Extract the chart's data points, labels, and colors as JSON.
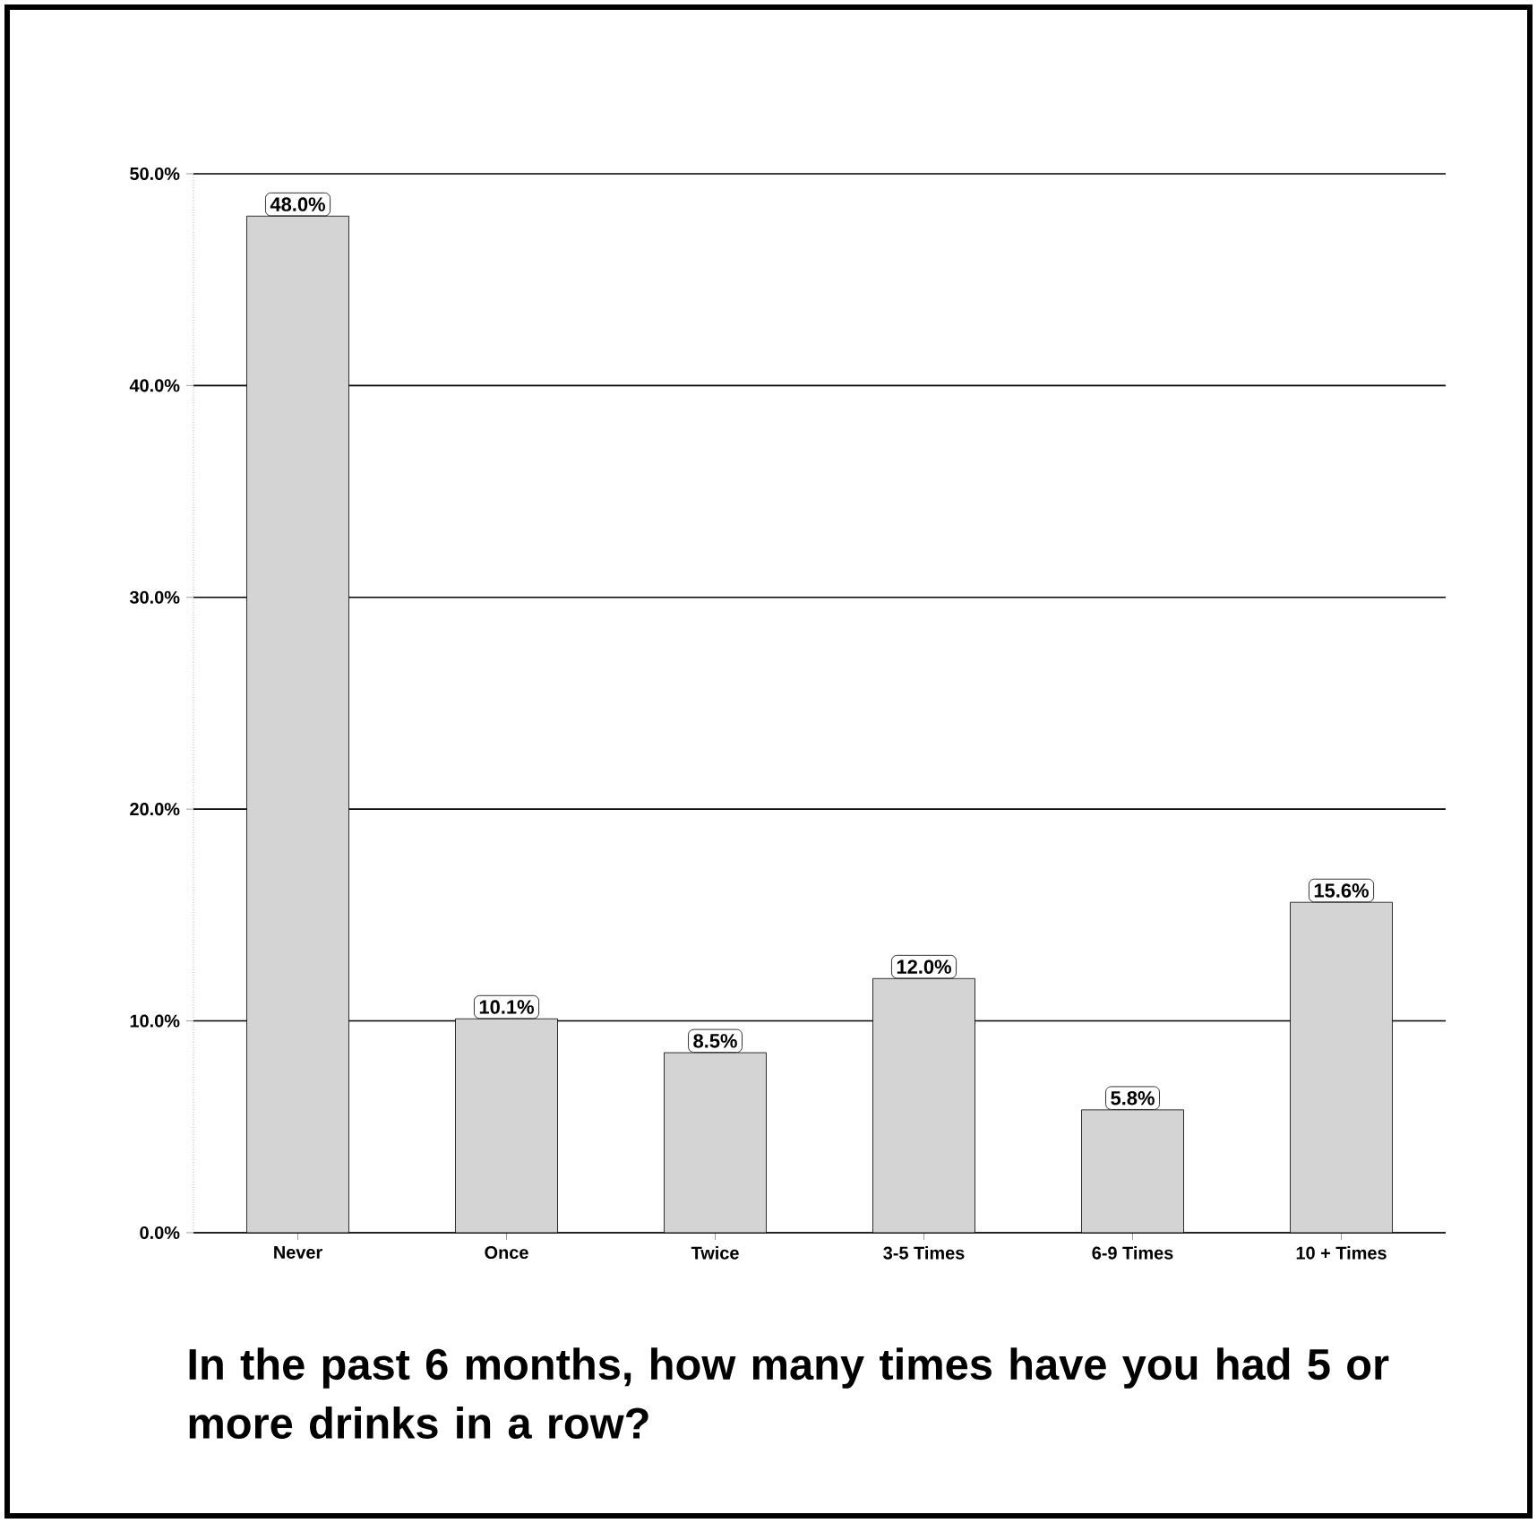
{
  "chart_data": {
    "type": "bar",
    "title": "In the past 6 months, how many times have you had 5 or more drinks in a row?",
    "categories": [
      "Never",
      "Once",
      "Twice",
      "3-5 Times",
      "6-9 Times",
      "10 + Times"
    ],
    "values": [
      48.0,
      10.1,
      8.5,
      12.0,
      5.8,
      15.6
    ],
    "value_labels": [
      "48.0%",
      "10.1%",
      "8.5%",
      "12.0%",
      "5.8%",
      "15.6%"
    ],
    "color": "#d4d4d4",
    "ylim": [
      0,
      50
    ],
    "yticks": [
      {
        "value": 0,
        "label": "0.0%"
      },
      {
        "value": 10,
        "label": "10.0%"
      },
      {
        "value": 20,
        "label": "20.0%"
      },
      {
        "value": 30,
        "label": "30.0%"
      },
      {
        "value": 40,
        "label": "40.0%"
      },
      {
        "value": 50,
        "label": "50.0%"
      }
    ],
    "grid": "y"
  }
}
